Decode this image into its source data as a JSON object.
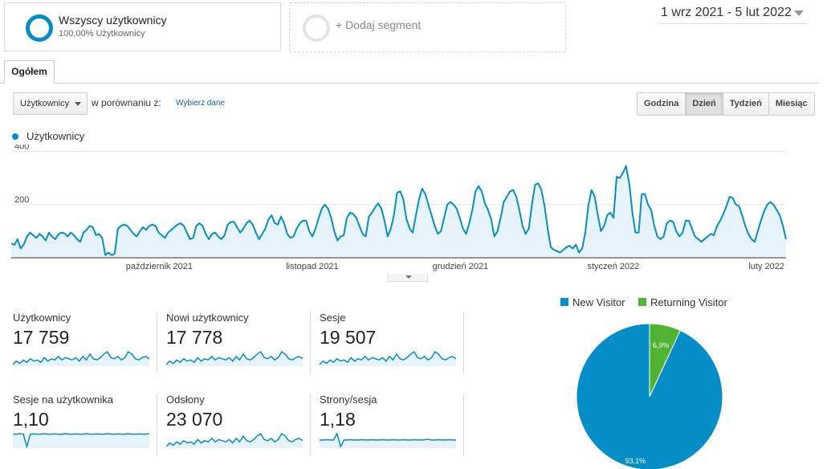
{
  "segments": {
    "active": {
      "title": "Wszyscy użytkownicy",
      "subtitle": "100,00% Użytkownicy"
    },
    "add_label": "+ Dodaj segment"
  },
  "date_range": "1 wrz 2021 - 5 lut 2022",
  "tabs": [
    "Ogółem"
  ],
  "controls": {
    "metric": "Użytkownicy",
    "compare_label": "w porównaniu z:",
    "compare_link": "Wybierz dane",
    "granularity": [
      "Godzina",
      "Dzień",
      "Tydzień",
      "Miesiąc"
    ],
    "granularity_selected": "Dzień"
  },
  "colors": {
    "accent": "#058dc7",
    "returning": "#50b432",
    "fill": "#e6f3fa",
    "text": "#222222",
    "link": "#1a5fa8"
  },
  "chart_data": [
    {
      "type": "line",
      "legend": "Użytkownicy",
      "y_ticks": [
        "400",
        "200"
      ],
      "ylim": [
        0,
        420
      ],
      "x_labels": [
        "październik 2021",
        "listopad 2021",
        "grudzień 2021",
        "styczeń 2022",
        "luty 2022"
      ],
      "x_start": "2021-09-01",
      "x_end": "2022-02-05",
      "grid": true,
      "series": [
        {
          "name": "Użytkownicy",
          "values": [
            55,
            48,
            70,
            35,
            50,
            80,
            95,
            85,
            75,
            90,
            80,
            65,
            95,
            80,
            70,
            88,
            95,
            92,
            80,
            95,
            85,
            70,
            60,
            95,
            105,
            120,
            115,
            85,
            90,
            75,
            10,
            20,
            10,
            15,
            110,
            120,
            125,
            120,
            105,
            90,
            80,
            100,
            115,
            105,
            120,
            125,
            120,
            95,
            85,
            75,
            95,
            105,
            115,
            125,
            130,
            120,
            95,
            70,
            75,
            120,
            130,
            120,
            90,
            70,
            90,
            95,
            80,
            70,
            85,
            125,
            135,
            135,
            115,
            95,
            110,
            130,
            140,
            125,
            95,
            70,
            90,
            110,
            145,
            160,
            130,
            125,
            155,
            130,
            90,
            75,
            80,
            110,
            130,
            140,
            140,
            100,
            80,
            110,
            150,
            185,
            200,
            185,
            150,
            100,
            65,
            80,
            85,
            150,
            170,
            165,
            150,
            120,
            90,
            80,
            155,
            170,
            190,
            205,
            185,
            140,
            80,
            110,
            160,
            245,
            250,
            220,
            145,
            110,
            95,
            160,
            220,
            260,
            240,
            200,
            160,
            120,
            90,
            100,
            150,
            200,
            210,
            200,
            185,
            150,
            110,
            90,
            130,
            180,
            250,
            270,
            250,
            205,
            180,
            145,
            80,
            100,
            150,
            210,
            230,
            250,
            255,
            230,
            180,
            120,
            90,
            110,
            200,
            275,
            280,
            255,
            195,
            110,
            40,
            30,
            25,
            20,
            30,
            40,
            45,
            35,
            50,
            20,
            35,
            95,
            200,
            255,
            230,
            160,
            100,
            120,
            160,
            170,
            150,
            305,
            300,
            320,
            345,
            280,
            170,
            95,
            95,
            240,
            240,
            200,
            180,
            120,
            80,
            70,
            80,
            130,
            140,
            135,
            100,
            80,
            95,
            140,
            140,
            110,
            80,
            70,
            60,
            70,
            80,
            90,
            85,
            120,
            140,
            165,
            195,
            230,
            225,
            200,
            195,
            160,
            120,
            90,
            70,
            60,
            100,
            140,
            175,
            200,
            210,
            200,
            180,
            160,
            120,
            70
          ]
        }
      ]
    },
    {
      "type": "pie",
      "legend": [
        "New Visitor",
        "Returning Visitor"
      ],
      "slices": [
        {
          "name": "New Visitor",
          "value": 93.1,
          "label": "93,1%"
        },
        {
          "name": "Returning Visitor",
          "value": 6.9,
          "label": "6,9%"
        }
      ]
    }
  ],
  "scorecards": [
    {
      "label": "Użytkownicy",
      "value": "17 759",
      "spark": [
        40,
        55,
        45,
        60,
        50,
        65,
        55,
        60,
        50,
        70,
        55,
        65,
        60,
        75,
        60,
        70,
        65,
        60,
        70,
        55,
        75,
        60,
        85,
        65,
        60,
        70,
        85,
        95,
        70,
        65,
        75,
        60,
        70,
        95,
        85,
        65,
        60,
        70,
        75,
        65
      ]
    },
    {
      "label": "Nowi użytkownicy",
      "value": "17 778",
      "spark": [
        40,
        55,
        45,
        60,
        50,
        65,
        55,
        60,
        50,
        70,
        55,
        65,
        60,
        75,
        60,
        70,
        65,
        60,
        70,
        55,
        75,
        60,
        85,
        65,
        60,
        70,
        85,
        95,
        70,
        65,
        75,
        60,
        70,
        95,
        85,
        65,
        60,
        70,
        75,
        65
      ]
    },
    {
      "label": "Sesje",
      "value": "19 507",
      "spark": [
        40,
        55,
        45,
        60,
        50,
        65,
        55,
        60,
        50,
        70,
        55,
        65,
        60,
        75,
        60,
        70,
        65,
        60,
        70,
        55,
        75,
        60,
        85,
        65,
        60,
        70,
        85,
        95,
        70,
        65,
        75,
        60,
        70,
        95,
        85,
        65,
        60,
        70,
        75,
        65
      ]
    },
    {
      "label": "Sesje na użytkownika",
      "value": "1,10",
      "spark": [
        60,
        60,
        62,
        60,
        10,
        60,
        61,
        60,
        60,
        62,
        60,
        60,
        61,
        60,
        60,
        62,
        60,
        60,
        61,
        60,
        60,
        62,
        60,
        60,
        61,
        60,
        60,
        62,
        60,
        60,
        61,
        60,
        60,
        62,
        60,
        60,
        61,
        60,
        60,
        62
      ]
    },
    {
      "label": "Odsłony",
      "value": "23 070",
      "spark": [
        40,
        55,
        45,
        60,
        50,
        65,
        55,
        60,
        50,
        70,
        55,
        65,
        60,
        75,
        60,
        70,
        65,
        60,
        70,
        55,
        75,
        60,
        85,
        65,
        60,
        70,
        85,
        95,
        70,
        65,
        75,
        60,
        70,
        95,
        85,
        65,
        60,
        70,
        75,
        65
      ]
    },
    {
      "label": "Strony/sesja",
      "value": "1,18",
      "spark": [
        58,
        58,
        60,
        58,
        58,
        95,
        20,
        58,
        58,
        60,
        58,
        58,
        60,
        58,
        58,
        60,
        58,
        58,
        60,
        58,
        58,
        60,
        58,
        58,
        60,
        58,
        58,
        60,
        58,
        58,
        60,
        62,
        58,
        58,
        60,
        58,
        58,
        60,
        58,
        58
      ]
    }
  ]
}
